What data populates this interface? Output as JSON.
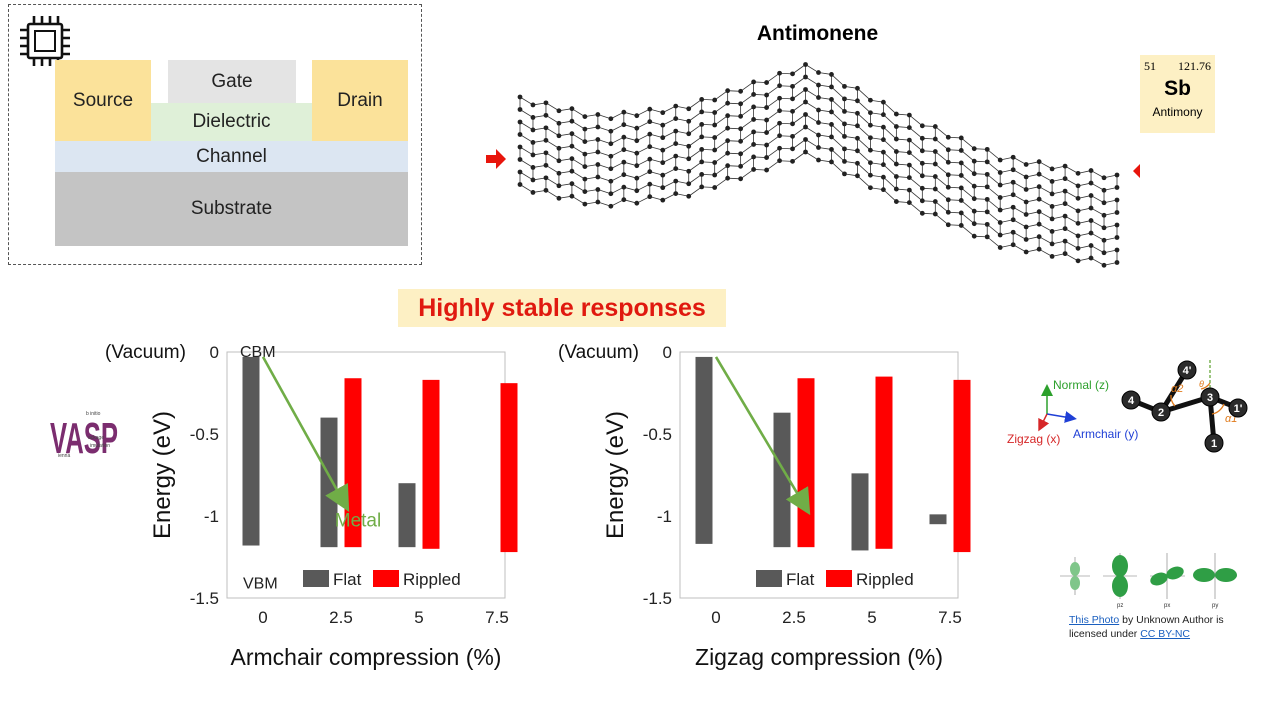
{
  "device": {
    "source": "Source",
    "gate": "Gate",
    "drain": "Drain",
    "dielectric": "Dielectric",
    "channel": "Channel",
    "substrate": "Substrate",
    "colors": {
      "electrode": "#fbe29a",
      "gate": "#e4e4e4",
      "dielectric": "#dff0d8",
      "channel": "#dce6f2",
      "substrate": "#c4c4c4"
    }
  },
  "structure": {
    "title": "Antimonene",
    "arrow_color": "#e8150c"
  },
  "element": {
    "atomic_number": "51",
    "atomic_mass": "121.76",
    "symbol": "Sb",
    "name": "Antimony"
  },
  "banner": {
    "text": "Highly stable responses"
  },
  "vasp_logo": {
    "letters": "VASP",
    "lines": [
      "b initio",
      "ackage",
      "imulation",
      "ienna"
    ]
  },
  "axes_legend": {
    "normal": "Normal (z)",
    "zigzag": "Zigzag (x)",
    "armchair": "Armchair (y)"
  },
  "molecule": {
    "atoms": [
      "4'",
      "4",
      "2",
      "3",
      "1'",
      "1"
    ],
    "angles": [
      "α2",
      "θ",
      "α1"
    ]
  },
  "orbitals": {
    "labels": [
      "pz",
      "px",
      "py"
    ]
  },
  "credit": {
    "link1": "This Photo",
    "text1": " by Unknown Author is licensed under ",
    "link2": "CC BY-NC"
  },
  "chart_data": [
    {
      "type": "bar",
      "title": "",
      "xlabel": "Armchair compression (%)",
      "ylabel": "Energy (eV)",
      "ylim": [
        -1.5,
        0
      ],
      "yticks": [
        "0",
        "-0.5",
        "-1",
        "-1.5"
      ],
      "categories": [
        "0",
        "2.5",
        "5",
        "7.5"
      ],
      "series": [
        {
          "name": "Flat",
          "color": "#595959",
          "ranges": [
            [
              -0.03,
              -1.18
            ],
            [
              -0.4,
              -1.19
            ],
            [
              -0.8,
              -1.19
            ],
            null
          ]
        },
        {
          "name": "Rippled",
          "color": "#ff0000",
          "ranges": [
            null,
            [
              -0.16,
              -1.19
            ],
            [
              -0.17,
              -1.2
            ],
            [
              -0.19,
              -1.22
            ]
          ]
        }
      ],
      "annotations": {
        "vacuum": "(Vacuum)",
        "cbm": "CBM",
        "vbm": "VBM",
        "metal": "Metal"
      },
      "trend_arrow": {
        "from": [
          0,
          -0.03
        ],
        "to": [
          2.6,
          -0.92
        ],
        "color": "#70ad47"
      }
    },
    {
      "type": "bar",
      "title": "",
      "xlabel": "Zigzag compression (%)",
      "ylabel": "Energy (eV)",
      "ylim": [
        -1.5,
        0
      ],
      "yticks": [
        "0",
        "-0.5",
        "-1",
        "-1.5"
      ],
      "categories": [
        "0",
        "2.5",
        "5",
        "7.5"
      ],
      "series": [
        {
          "name": "Flat",
          "color": "#595959",
          "ranges": [
            [
              -0.03,
              -1.17
            ],
            [
              -0.37,
              -1.19
            ],
            [
              -0.74,
              -1.21
            ],
            [
              -0.99,
              -1.05
            ]
          ]
        },
        {
          "name": "Rippled",
          "color": "#ff0000",
          "ranges": [
            null,
            [
              -0.16,
              -1.19
            ],
            [
              -0.15,
              -1.2
            ],
            [
              -0.17,
              -1.22
            ]
          ]
        }
      ],
      "annotations": {
        "vacuum": "(Vacuum)"
      },
      "trend_arrow": {
        "from": [
          0,
          -0.03
        ],
        "to": [
          2.85,
          -0.94
        ],
        "color": "#70ad47"
      }
    }
  ]
}
